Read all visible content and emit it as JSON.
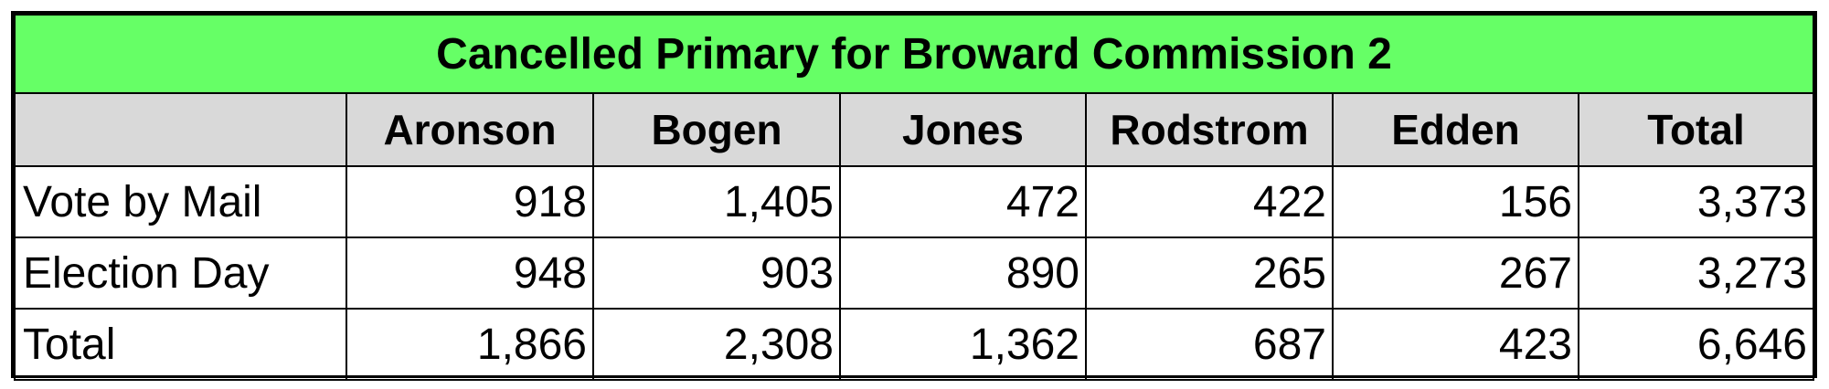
{
  "chart_data": {
    "type": "table",
    "title": "Cancelled Primary for Broward Commission 2",
    "columns": [
      "",
      "Aronson",
      "Bogen",
      "Jones",
      "Rodstrom",
      "Edden",
      "Total"
    ],
    "rows": [
      {
        "label": "Vote by Mail",
        "values": [
          "918",
          "1,405",
          "472",
          "422",
          "156",
          "3,373"
        ]
      },
      {
        "label": "Election Day",
        "values": [
          "948",
          "903",
          "890",
          "265",
          "267",
          "3,273"
        ]
      },
      {
        "label": "Total",
        "values": [
          "1,866",
          "2,308",
          "1,362",
          "687",
          "423",
          "6,646"
        ]
      }
    ]
  },
  "colors": {
    "title_background": "#66ff66",
    "header_background": "#d9d9d9",
    "border": "#000000"
  }
}
